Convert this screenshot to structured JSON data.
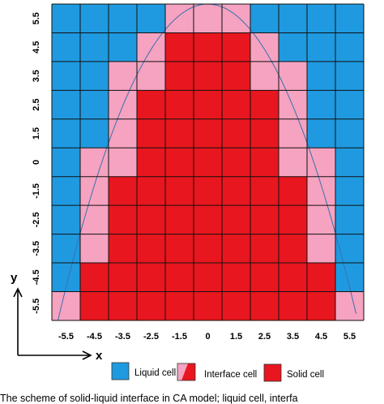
{
  "diagram": {
    "columns": 11,
    "rows": 11,
    "x_ticks": [
      "-5.5",
      "-4.5",
      "-3.5",
      "-2.5",
      "-1.5",
      "0",
      "1.5",
      "2.5",
      "3.5",
      "4.5",
      "5.5"
    ],
    "y_ticks": [
      "5.5",
      "4.5",
      "3.5",
      "2.5",
      "1.5",
      "0",
      "-1.5",
      "-2.5",
      "-3.5",
      "-4.5",
      "-5.5"
    ],
    "x_label": "x",
    "y_label": "y",
    "colors": {
      "liquid": "#1f9ae0",
      "interface": "#f5a3c0",
      "solid": "#e8161e",
      "interface_light": "#ffffff"
    },
    "cell_grid": [
      "LLLLIIILLLL",
      "LLLISSSILLL",
      "LLIISSSIILL",
      "LLISSSSSILL",
      "LLISSSSSILL",
      "LIISSSSSIIL",
      "LISSSSSSSIL",
      "LISSSSSSSIL",
      "LISSSSSSSIL",
      "LSSSSSSSSSL",
      "ISSSSSSSSSI"
    ]
  },
  "legend": {
    "liquid_label": "Liquid cell",
    "interface_label": "Interface cell",
    "solid_label": "Solid cell"
  },
  "caption": "The scheme of solid-liquid interface in CA model; liquid cell, interfa"
}
